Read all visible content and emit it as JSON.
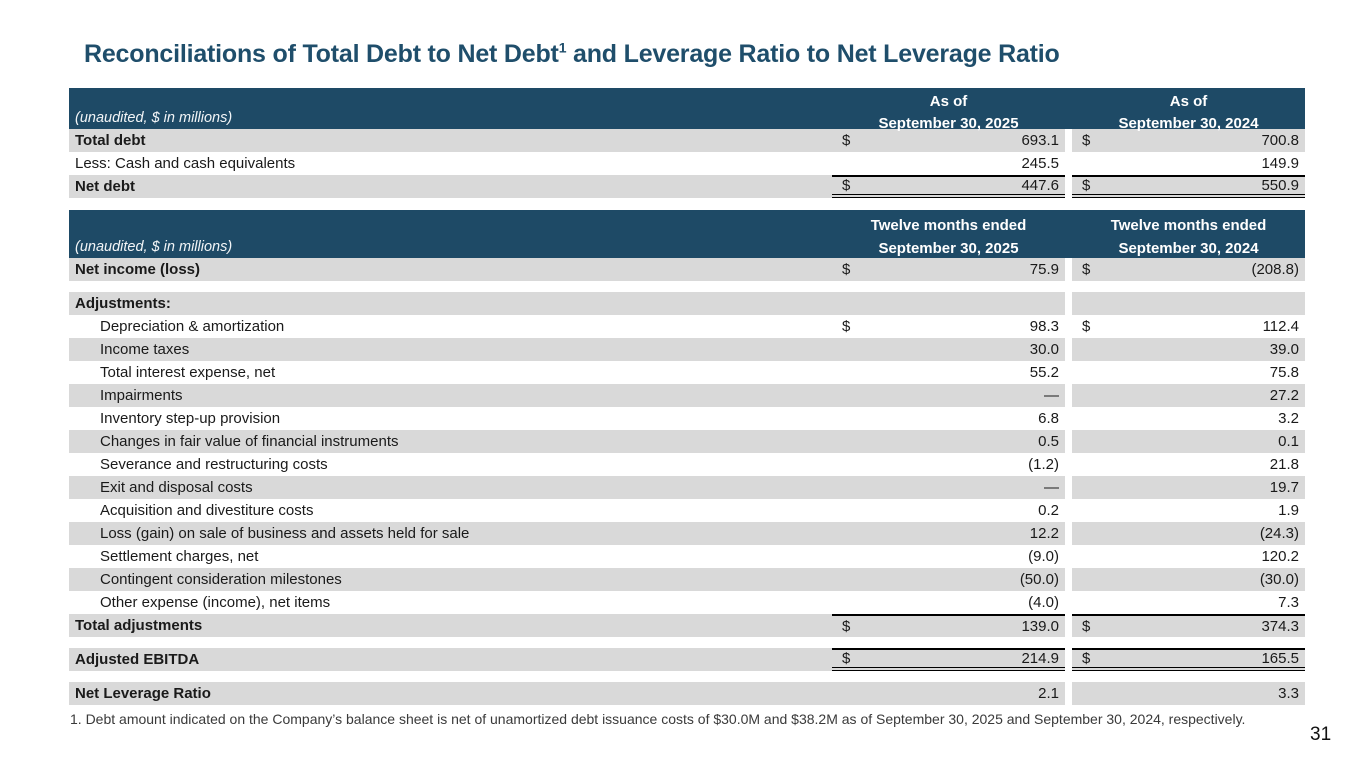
{
  "page": {
    "title_main": "Reconciliations of Total Debt to Net Debt",
    "title_superscript": "1",
    "title_rest": " and Leverage Ratio to Net Leverage Ratio",
    "footnote": "1. Debt amount indicated on the Company’s balance sheet is net of unamortized debt issuance costs of $30.0M and $38.2M as of September 30, 2025 and September 30, 2024, respectively.",
    "page_number": "31"
  },
  "colors": {
    "header_bg": "#1E4A66",
    "title_text": "#1F4E6B",
    "row_stripe": "#D9D9D9",
    "border_black": "#000000"
  },
  "tables": [
    {
      "unaudited_label": "(unaudited, $ in millions)",
      "columns": [
        {
          "line1": "As of",
          "line2": "September 30, 2025"
        },
        {
          "line1": "As of",
          "line2": "September 30, 2024"
        }
      ],
      "rows": [
        {
          "label": "Total debt",
          "bold": true,
          "bg": "gray",
          "d1": "$",
          "v1": "693.1",
          "d2": "$",
          "v2": "700.8"
        },
        {
          "label": "Less: Cash and cash equivalents",
          "bg": "white",
          "v1": "245.5",
          "v2": "149.9"
        },
        {
          "label": "Net debt",
          "bold": true,
          "bg": "gray",
          "border": "top-double",
          "d1": "$",
          "v1": "447.6",
          "d2": "$",
          "v2": "550.9"
        }
      ]
    },
    {
      "unaudited_label": "(unaudited, $ in millions)",
      "columns": [
        {
          "line1": "Twelve months ended",
          "line2": "September 30, 2025"
        },
        {
          "line1": "Twelve months ended",
          "line2": "September 30, 2024"
        }
      ],
      "rows": [
        {
          "label": "Net income (loss)",
          "bold": true,
          "bg": "gray",
          "d1": "$",
          "v1": "75.9",
          "d2": "$",
          "v2": "(208.8)"
        },
        {
          "label": "Adjustments:",
          "bold": true,
          "bg": "gray",
          "spacer_before": true,
          "v1": "",
          "v2": ""
        },
        {
          "label": "Depreciation & amortization",
          "indent": true,
          "bg": "white",
          "d1": "$",
          "v1": "98.3",
          "d2": "$",
          "v2": "112.4"
        },
        {
          "label": "Income taxes",
          "indent": true,
          "bg": "gray",
          "v1": "30.0",
          "v2": "39.0"
        },
        {
          "label": "Total interest expense, net",
          "indent": true,
          "bg": "white",
          "v1": "55.2",
          "v2": "75.8"
        },
        {
          "label": "Impairments",
          "indent": true,
          "bg": "gray",
          "v1": "—",
          "v2": "27.2"
        },
        {
          "label": "Inventory step-up provision",
          "indent": true,
          "bg": "white",
          "v1": "6.8",
          "v2": "3.2"
        },
        {
          "label": "Changes in fair value of financial instruments",
          "indent": true,
          "bg": "gray",
          "v1": "0.5",
          "v2": "0.1"
        },
        {
          "label": "Severance and restructuring costs",
          "indent": true,
          "bg": "white",
          "v1": "(1.2)",
          "v2": "21.8"
        },
        {
          "label": "Exit and disposal costs",
          "indent": true,
          "bg": "gray",
          "v1": "—",
          "v2": "19.7"
        },
        {
          "label": "Acquisition and divestiture costs",
          "indent": true,
          "bg": "white",
          "v1": "0.2",
          "v2": "1.9"
        },
        {
          "label": "Loss (gain) on sale of business and assets held for sale",
          "indent": true,
          "bg": "gray",
          "v1": "12.2",
          "v2": "(24.3)"
        },
        {
          "label": "Settlement charges, net",
          "indent": true,
          "bg": "white",
          "v1": "(9.0)",
          "v2": "120.2"
        },
        {
          "label": "Contingent consideration milestones",
          "indent": true,
          "bg": "gray",
          "v1": "(50.0)",
          "v2": "(30.0)"
        },
        {
          "label": "Other expense (income), net items",
          "indent": true,
          "bg": "white",
          "v1": "(4.0)",
          "v2": "7.3"
        },
        {
          "label": "Total adjustments",
          "bold": true,
          "bg": "gray",
          "border": "top",
          "d1": "$",
          "v1": "139.0",
          "d2": "$",
          "v2": "374.3"
        },
        {
          "label": "Adjusted EBITDA",
          "bold": true,
          "bg": "gray",
          "spacer_before": true,
          "border": "top-double",
          "d1": "$",
          "v1": "214.9",
          "d2": "$",
          "v2": "165.5"
        },
        {
          "label": "Net Leverage Ratio",
          "bold": true,
          "bg": "gray",
          "spacer_before": true,
          "v1": "2.1",
          "v2": "3.3"
        }
      ]
    }
  ]
}
